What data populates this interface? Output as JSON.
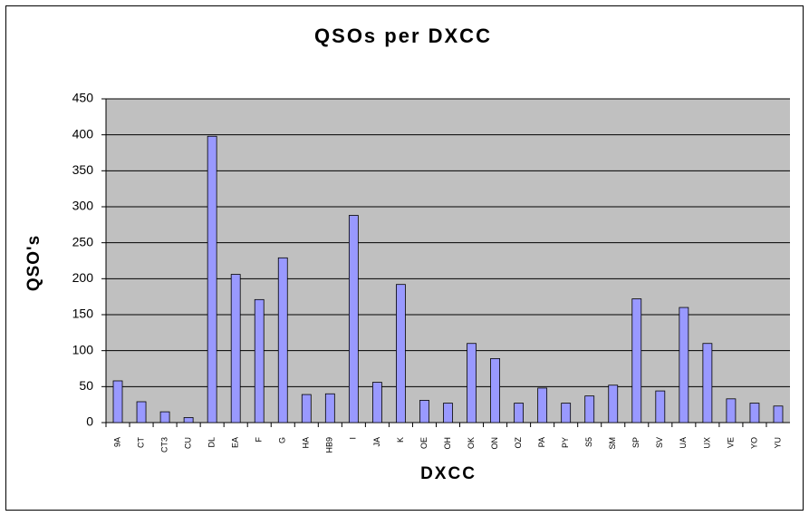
{
  "chart_data": {
    "type": "bar",
    "title": "QSOs per DXCC",
    "x_label": "DXCC",
    "y_label": "QSO's",
    "categories": [
      "9A",
      "CT",
      "CT3",
      "CU",
      "DL",
      "EA",
      "F",
      "G",
      "HA",
      "HB9",
      "I",
      "JA",
      "K",
      "OE",
      "OH",
      "OK",
      "ON",
      "OZ",
      "PA",
      "PY",
      "S5",
      "SM",
      "SP",
      "SV",
      "UA",
      "UX",
      "VE",
      "YO",
      "YU"
    ],
    "values": [
      58,
      29,
      15,
      7,
      398,
      206,
      171,
      229,
      39,
      40,
      288,
      56,
      192,
      31,
      27,
      110,
      89,
      27,
      48,
      27,
      37,
      52,
      172,
      44,
      160,
      110,
      33,
      27,
      23
    ],
    "color": "#9999ff",
    "ylim": [
      0,
      450
    ],
    "yticks": [
      0,
      50,
      100,
      150,
      200,
      250,
      300,
      350,
      400,
      450
    ],
    "grid": true
  }
}
